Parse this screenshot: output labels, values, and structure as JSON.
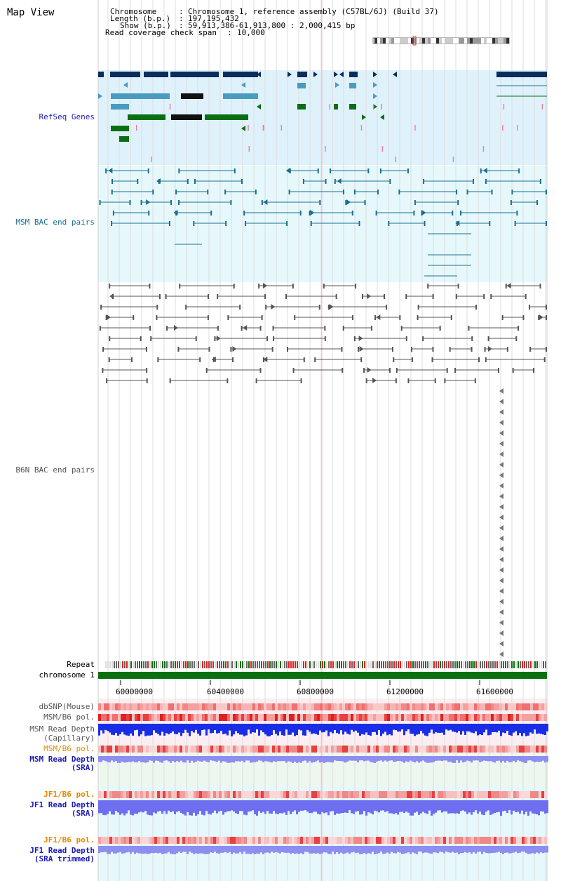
{
  "title": "Map View",
  "info": {
    "chromosome_label": "Chromosome",
    "chromosome_value": "Chromosome 1, reference assembly (C57BL/6J) (Build 37)",
    "length_label": "Length (b.p.)",
    "length_value": "197,195,432",
    "show_label": "Show (b.p.)",
    "show_value": "59,913,386-61,913,800 : 2,000,415 bp",
    "span_label": "Read coverage check span",
    "span_value": "10,000"
  },
  "tracks": {
    "refseq": "RefSeq Genes",
    "msm_bac": "MSM BAC end pairs",
    "b6n_bac": "B6N BAC end pairs",
    "repeat": "Repeat",
    "chromosome": "chromosome 1",
    "dbsnp": "dbSNP(Mouse)",
    "msm_b6_pol": "MSM/B6 pol.",
    "msm_depth_cap_1": "MSM Read Depth",
    "msm_depth_cap_2": "(Capillary)",
    "msm_b6_pol_2": "MSM/B6 pol.",
    "msm_depth_sra_1": "MSM Read Depth",
    "msm_depth_sra_2": "(SRA)",
    "jf1_b6_pol": "JF1/B6 pol.",
    "jf1_depth_1": "JF1 Read Depth",
    "jf1_depth_2": "(SRA)",
    "jf1_b6_pol_2": "JF1/B6 pol.",
    "jf1_trim_1": "JF1 Read Depth",
    "jf1_trim_2": "(SRA trimmed)"
  },
  "axis": {
    "ticks": [
      "60000000",
      "60400000",
      "60800000",
      "61200000",
      "61600000"
    ]
  },
  "colors": {
    "refseq_bg": "#dff2fb",
    "msm_bg": "#e6f8fb",
    "b6n_bg": "#ffffff",
    "dark_gene": "#0a2d5c",
    "mid_gene": "#4a9bc0",
    "green_gene": "#0a6e14",
    "msm_line": "#1a6f8f",
    "b6n_line": "#555555",
    "chromosome_bar": "#0a7010",
    "label_blue": "#1a1ab4",
    "label_teal": "#1a6f8f",
    "label_gray": "#555555",
    "label_orange": "#e08a00"
  }
}
